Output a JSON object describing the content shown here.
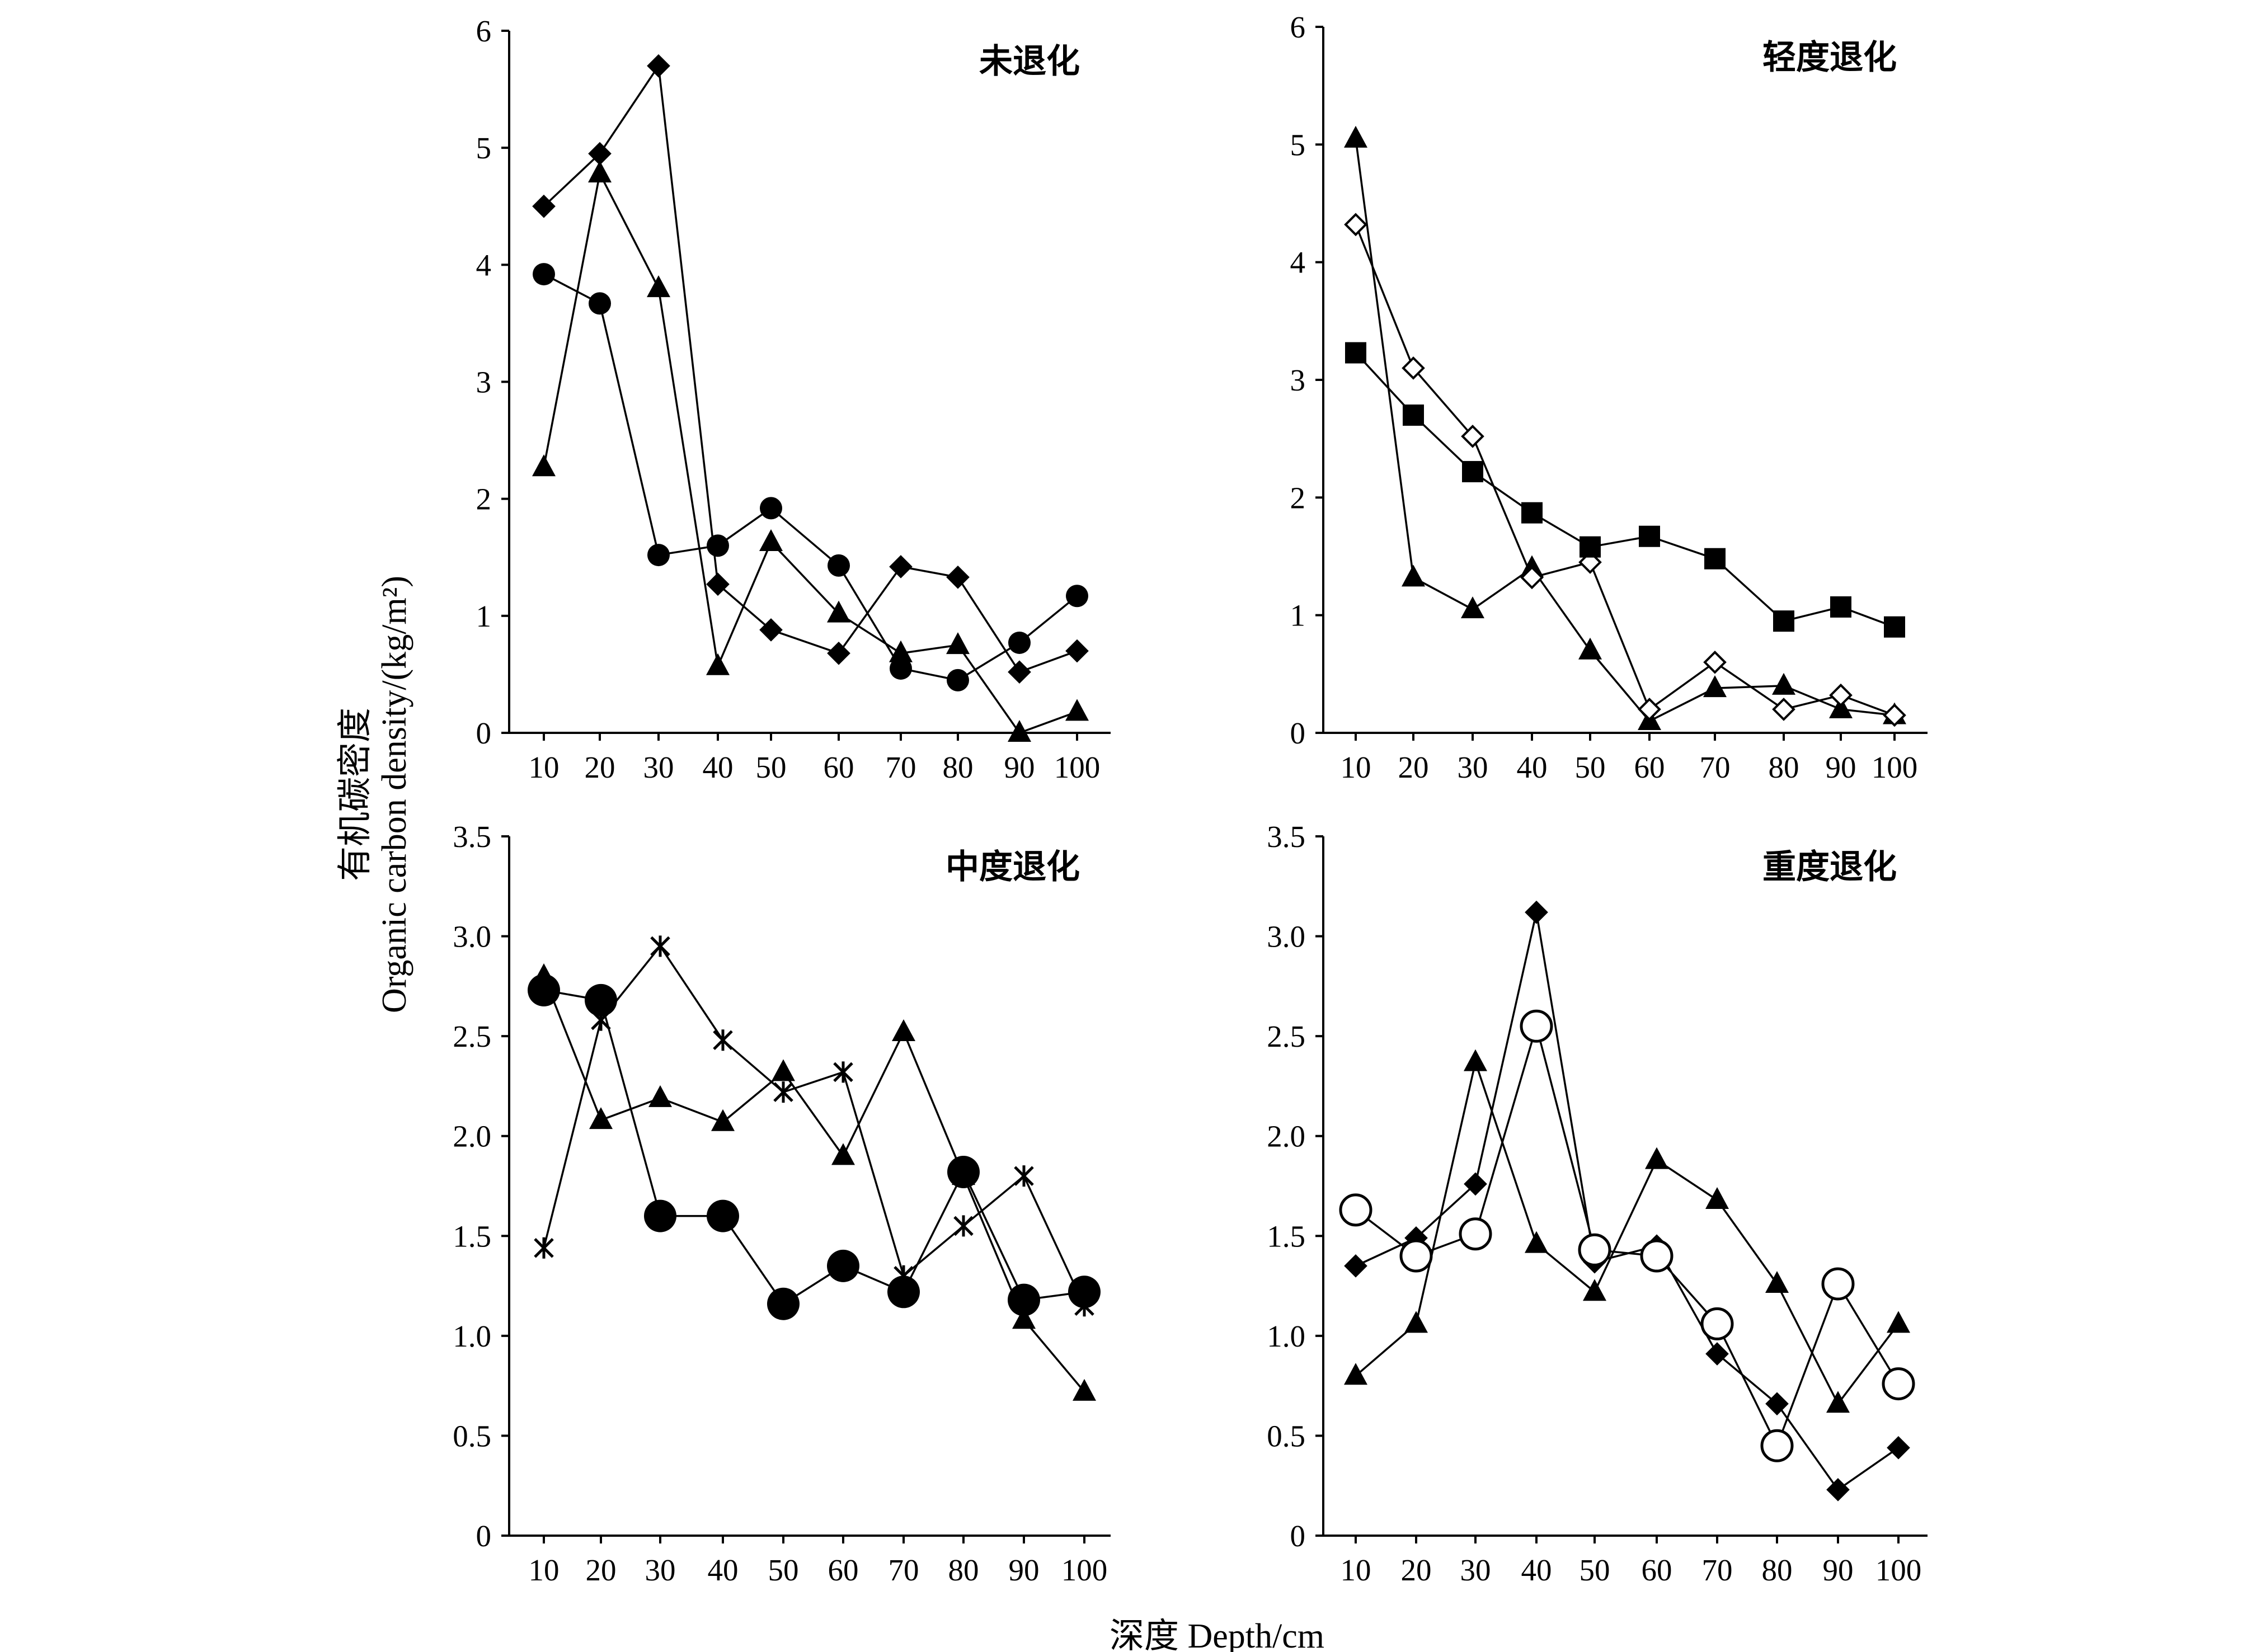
{
  "figure": {
    "ylabel_cn": "有机碳密度",
    "ylabel_en": "Organic carbon density/(kg/m²)",
    "xlabel": "深度 Depth/cm"
  },
  "chart_data": [
    {
      "type": "line",
      "title": "未退化",
      "x": [
        10,
        20,
        30,
        40,
        50,
        60,
        70,
        80,
        90,
        100
      ],
      "ylim": [
        0,
        6
      ],
      "yticks": [
        "0",
        "1",
        "2",
        "3",
        "4",
        "5",
        "6"
      ],
      "series": [
        {
          "marker": "diamond",
          "values": [
            4.5,
            4.95,
            5.7,
            1.27,
            0.88,
            0.68,
            1.42,
            1.33,
            0.52,
            0.7
          ]
        },
        {
          "marker": "circle",
          "values": [
            3.92,
            3.67,
            1.52,
            1.6,
            1.92,
            1.43,
            0.55,
            0.45,
            0.77,
            1.17
          ]
        },
        {
          "marker": "triangle",
          "values": [
            2.27,
            4.78,
            3.8,
            0.57,
            1.63,
            1.02,
            0.68,
            0.75,
            0.0,
            0.18
          ]
        }
      ]
    },
    {
      "type": "line",
      "title": "轻度退化",
      "x": [
        10,
        20,
        30,
        40,
        50,
        60,
        70,
        80,
        90,
        100
      ],
      "ylim": [
        0,
        6
      ],
      "yticks": [
        "0",
        "1",
        "2",
        "3",
        "4",
        "5",
        "6"
      ],
      "series": [
        {
          "marker": "triangle",
          "values": [
            5.05,
            1.32,
            1.05,
            1.4,
            0.7,
            0.1,
            0.38,
            0.4,
            0.2,
            0.15
          ]
        },
        {
          "marker": "open-diamond",
          "values": [
            4.32,
            3.1,
            2.52,
            1.32,
            1.45,
            0.2,
            0.6,
            0.2,
            0.32,
            0.15
          ]
        },
        {
          "marker": "square",
          "values": [
            3.23,
            2.7,
            2.22,
            1.87,
            1.58,
            1.67,
            1.48,
            0.95,
            1.07,
            0.9
          ]
        }
      ]
    },
    {
      "type": "line",
      "title": "中度退化",
      "x": [
        10,
        20,
        30,
        40,
        50,
        60,
        70,
        80,
        90,
        100
      ],
      "ylim": [
        0,
        3.5
      ],
      "yticks": [
        "0",
        "0.5",
        "1.0",
        "1.5",
        "2.0",
        "2.5",
        "3.0",
        "3.5"
      ],
      "series": [
        {
          "marker": "big-circle",
          "values": [
            2.73,
            2.68,
            1.6,
            1.6,
            1.16,
            1.35,
            1.22,
            1.82,
            1.18,
            1.22
          ]
        },
        {
          "marker": "triangle",
          "values": [
            2.8,
            2.08,
            2.19,
            2.07,
            2.32,
            1.9,
            2.52,
            1.8,
            1.08,
            0.72
          ]
        },
        {
          "marker": "star",
          "values": [
            1.44,
            2.58,
            2.95,
            2.48,
            2.22,
            2.32,
            1.3,
            1.55,
            1.8,
            1.15
          ]
        }
      ]
    },
    {
      "type": "line",
      "title": "重度退化",
      "x": [
        10,
        20,
        30,
        40,
        50,
        60,
        70,
        80,
        90,
        100
      ],
      "ylim": [
        0,
        3.5
      ],
      "yticks": [
        "0",
        "0.5",
        "1.0",
        "1.5",
        "2.0",
        "2.5",
        "3.0",
        "3.5"
      ],
      "series": [
        {
          "marker": "diamond",
          "values": [
            1.35,
            1.49,
            1.76,
            3.12,
            1.37,
            1.45,
            0.91,
            0.66,
            0.23,
            0.44
          ]
        },
        {
          "marker": "open-circle",
          "values": [
            1.63,
            1.4,
            1.51,
            2.55,
            1.43,
            1.4,
            1.06,
            0.45,
            1.26,
            0.76
          ]
        },
        {
          "marker": "triangle",
          "values": [
            0.8,
            1.06,
            2.37,
            1.46,
            1.22,
            1.88,
            1.68,
            1.26,
            0.66,
            1.06
          ]
        }
      ]
    }
  ]
}
